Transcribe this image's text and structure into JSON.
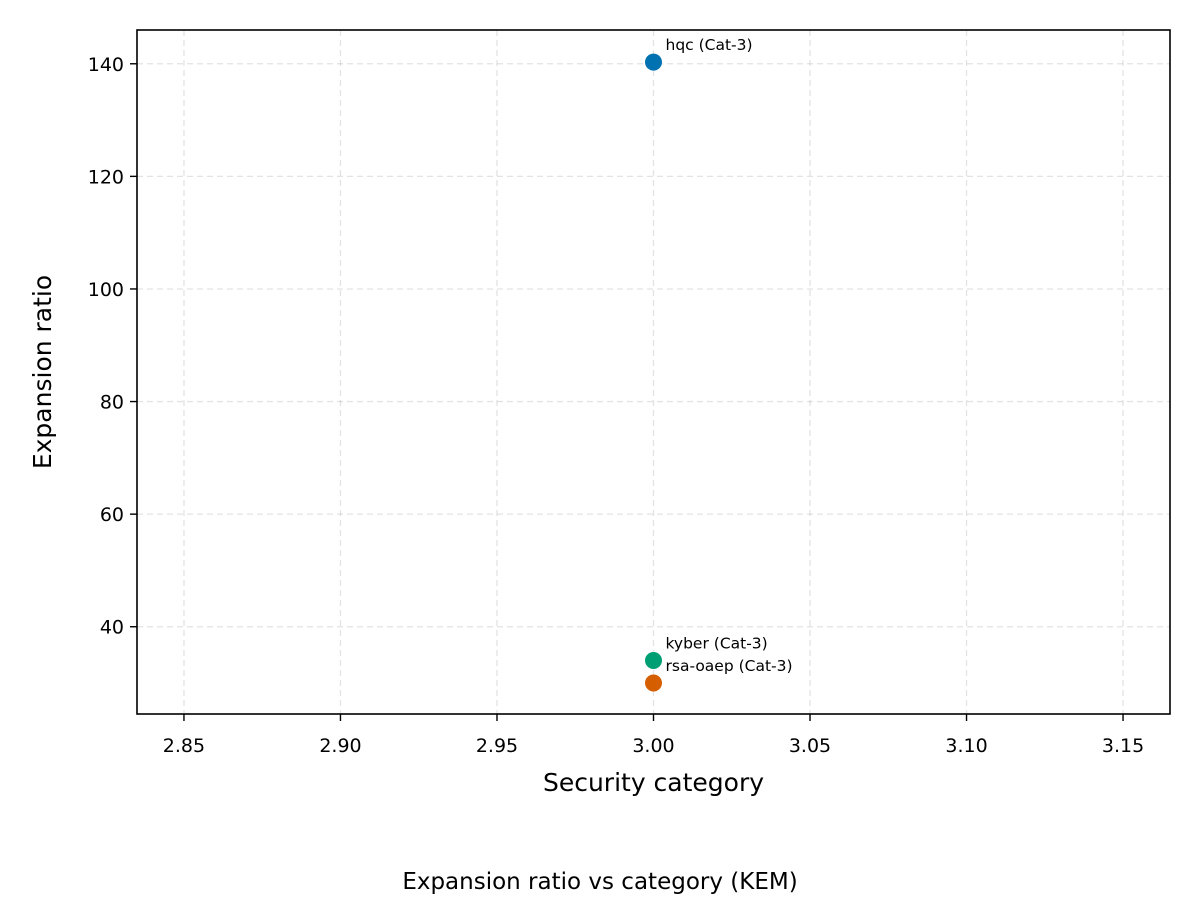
{
  "chart_data": {
    "type": "scatter",
    "xlabel": "Security category",
    "ylabel": "Expansion ratio",
    "caption": "Expansion ratio vs category (KEM)",
    "xlim": [
      2.835,
      3.165
    ],
    "ylim": [
      24.5,
      146
    ],
    "xticks": [
      2.85,
      2.9,
      2.95,
      3.0,
      3.05,
      3.1,
      3.15
    ],
    "xtick_labels": [
      "2.85",
      "2.90",
      "2.95",
      "3.00",
      "3.05",
      "3.10",
      "3.15"
    ],
    "yticks": [
      40,
      60,
      80,
      100,
      120,
      140
    ],
    "ytick_labels": [
      "40",
      "60",
      "80",
      "100",
      "120",
      "140"
    ],
    "grid": true,
    "points": [
      {
        "label": "hqc (Cat-3)",
        "x": 3.0,
        "y": 140.3,
        "color": "#0072B2"
      },
      {
        "label": "kyber (Cat-3)",
        "x": 3.0,
        "y": 34.0,
        "color": "#009E73"
      },
      {
        "label": "rsa-oaep (Cat-3)",
        "x": 3.0,
        "y": 30.0,
        "color": "#D55E00"
      }
    ]
  }
}
